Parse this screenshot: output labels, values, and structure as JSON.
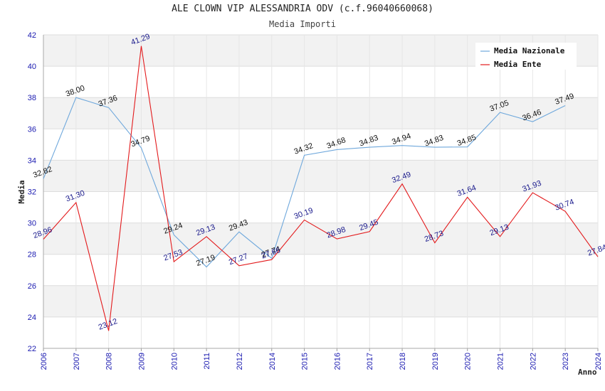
{
  "chart_data": {
    "type": "line",
    "title": "ALE CLOWN VIP ALESSANDRIA ODV (c.f.96040660068)",
    "subtitle": "Media Importi",
    "xlabel": "Anno",
    "ylabel": "Media",
    "ylim": [
      22,
      42
    ],
    "yticks": [
      "22",
      "24",
      "26",
      "28",
      "30",
      "32",
      "34",
      "36",
      "38",
      "40",
      "42"
    ],
    "categories": [
      "2006",
      "2007",
      "2008",
      "2009",
      "2010",
      "2011",
      "2012",
      "2014",
      "2015",
      "2016",
      "2017",
      "2018",
      "2019",
      "2020",
      "2021",
      "2022",
      "2023",
      "2024"
    ],
    "grid": true,
    "legend_position": "top-right",
    "series": [
      {
        "name": "Media Nazionale",
        "color": "#6fa8dc",
        "label_color": "#111111",
        "values": [
          32.82,
          38.0,
          37.36,
          34.79,
          29.24,
          27.19,
          29.43,
          27.74,
          34.32,
          34.68,
          34.83,
          34.94,
          34.83,
          34.85,
          37.05,
          36.46,
          37.49,
          null
        ],
        "labels": [
          "32.82",
          "38.00",
          "37.36",
          "34.79",
          "29.24",
          "27.19",
          "29.43",
          "27.74",
          "34.32",
          "34.68",
          "34.83",
          "34.94",
          "34.83",
          "34.85",
          "37.05",
          "36.46",
          "37.49",
          ""
        ]
      },
      {
        "name": "Media Ente",
        "color": "#e31a1c",
        "label_color": "#1a1a8c",
        "values": [
          28.96,
          31.3,
          23.12,
          41.29,
          27.53,
          29.13,
          27.27,
          27.66,
          30.19,
          28.98,
          29.45,
          32.49,
          28.73,
          31.64,
          29.13,
          31.93,
          30.74,
          27.84
        ],
        "labels": [
          "28.96",
          "31.30",
          "23.12",
          "41.29",
          "27.53",
          "29.13",
          "27.27",
          "27.66",
          "30.19",
          "28.98",
          "29.45",
          "32.49",
          "28.73",
          "31.64",
          "29.13",
          "31.93",
          "30.74",
          "27.84"
        ]
      }
    ]
  }
}
